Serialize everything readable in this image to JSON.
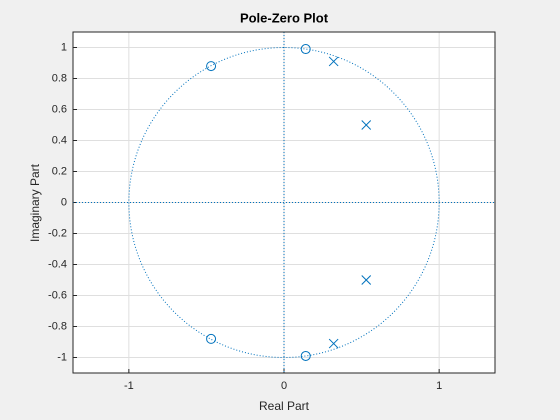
{
  "chart_data": {
    "type": "scatter",
    "title": "Pole-Zero Plot",
    "x_label": "Real Part",
    "y_label": "Imaginary Part",
    "xlim": [
      -1.36,
      1.36
    ],
    "ylim": [
      -1.1,
      1.1
    ],
    "xticks": [
      -1,
      0,
      1
    ],
    "yticks": [
      -1,
      -0.8,
      -0.6,
      -0.4,
      -0.2,
      0,
      0.2,
      0.4,
      0.6,
      0.8,
      1
    ],
    "grid": true,
    "series": [
      {
        "marker": "o",
        "color": "#0072bd",
        "x": [
          -0.47,
          0.14,
          -0.47,
          0.14
        ],
        "values": [
          0.88,
          0.99,
          -0.88,
          -0.99
        ]
      },
      {
        "marker": "x",
        "color": "#0072bd",
        "x": [
          0.32,
          0.53,
          0.53,
          0.32
        ],
        "values": [
          0.91,
          0.5,
          -0.5,
          -0.91
        ]
      }
    ]
  }
}
